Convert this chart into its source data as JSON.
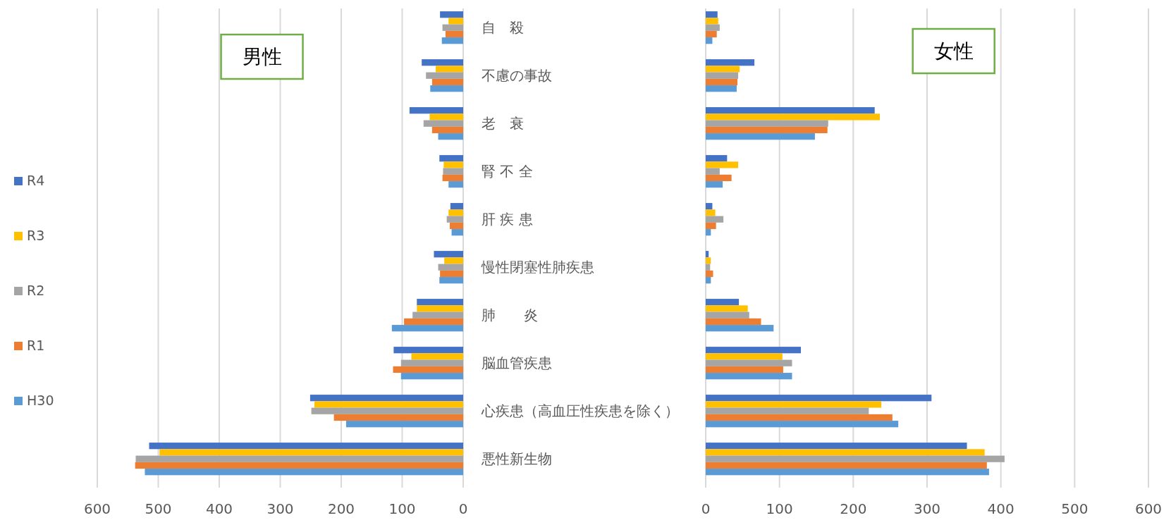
{
  "chart_data": [
    {
      "type": "bar",
      "title": "男性",
      "orientation": "horizontal",
      "categories": [
        "自　殺",
        "不慮の事故",
        "老　衰",
        "腎 不 全",
        "肝 疾 患",
        "慢性閉塞性肺疾患",
        "肺　　炎",
        "脳血管疾患",
        "心疾患（高血圧性疾患を除く）",
        "悪性新生物"
      ],
      "series": [
        {
          "name": "R4",
          "color": "#4472c4",
          "values": [
            38,
            68,
            88,
            39,
            21,
            48,
            76,
            114,
            251,
            515
          ]
        },
        {
          "name": "R3",
          "color": "#ffc000",
          "values": [
            24,
            45,
            55,
            32,
            24,
            31,
            76,
            85,
            244,
            498
          ]
        },
        {
          "name": "R2",
          "color": "#a5a5a5",
          "values": [
            34,
            61,
            65,
            33,
            27,
            41,
            83,
            102,
            249,
            537
          ]
        },
        {
          "name": "R1",
          "color": "#ed7d31",
          "values": [
            29,
            51,
            51,
            34,
            22,
            38,
            97,
            115,
            212,
            538
          ]
        },
        {
          "name": "H30",
          "color": "#5b9bd5",
          "values": [
            35,
            54,
            41,
            24,
            19,
            39,
            117,
            102,
            192,
            522
          ]
        }
      ],
      "xlim": [
        600,
        0
      ],
      "xticks": [
        600,
        500,
        400,
        300,
        200,
        100,
        0
      ],
      "grid": "x",
      "legend": "left"
    },
    {
      "type": "bar",
      "title": "女性",
      "orientation": "horizontal",
      "categories": [
        null,
        null,
        null,
        null,
        null,
        null,
        null,
        null,
        null,
        null
      ],
      "series": [
        {
          "color": "#4472c4",
          "values": [
            16,
            66,
            229,
            29,
            9,
            4,
            45,
            129,
            306,
            354
          ]
        },
        {
          "color": "#ffc000",
          "values": [
            17,
            46,
            236,
            44,
            13,
            7,
            57,
            104,
            238,
            378
          ]
        },
        {
          "color": "#a5a5a5",
          "values": [
            19,
            44,
            166,
            19,
            24,
            6,
            59,
            117,
            221,
            405
          ]
        },
        {
          "color": "#ed7d31",
          "values": [
            15,
            43,
            165,
            35,
            14,
            10,
            75,
            105,
            253,
            381
          ]
        },
        {
          "color": "#5b9bd5",
          "values": [
            9,
            42,
            148,
            23,
            7,
            7,
            92,
            117,
            261,
            384
          ]
        }
      ],
      "xlim": [
        0,
        600
      ],
      "xticks": [
        0,
        100,
        200,
        300,
        400,
        500,
        600
      ],
      "grid": "x",
      "tick_labels": "x"
    }
  ]
}
